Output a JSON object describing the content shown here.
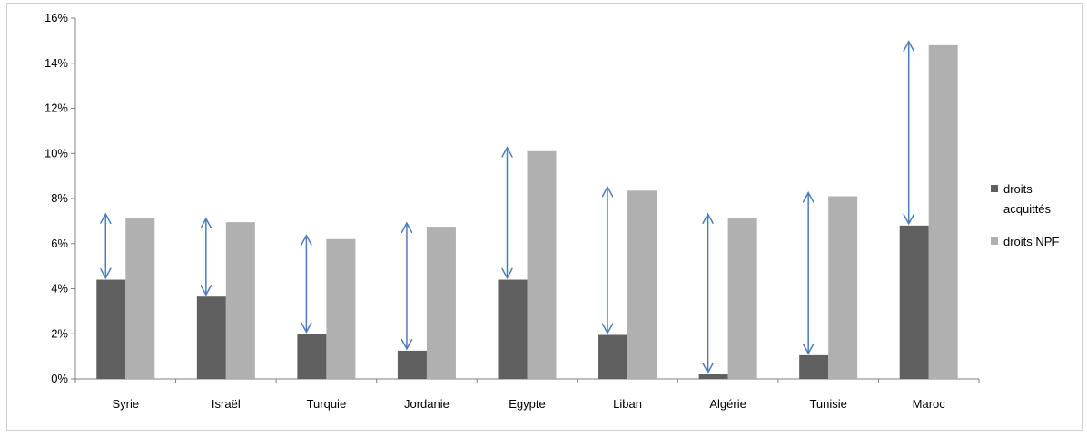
{
  "chart_data": {
    "type": "bar",
    "categories": [
      "Syrie",
      "Israël",
      "Turquie",
      "Jordanie",
      "Egypte",
      "Liban",
      "Algérie",
      "Tunisie",
      "Maroc"
    ],
    "series": [
      {
        "name": "droits acquittés",
        "values": [
          4.4,
          3.65,
          2.0,
          1.25,
          4.4,
          1.95,
          0.2,
          1.05,
          6.8
        ]
      },
      {
        "name": "droits NPF",
        "values": [
          7.15,
          6.95,
          6.2,
          6.75,
          10.1,
          8.35,
          7.15,
          8.1,
          14.8
        ]
      }
    ],
    "ylim": [
      0,
      16
    ],
    "yticks": [
      0,
      2,
      4,
      6,
      8,
      10,
      12,
      14,
      16
    ],
    "ytick_labels": [
      "0%",
      "2%",
      "4%",
      "6%",
      "8%",
      "10%",
      "12%",
      "14%",
      "16%"
    ],
    "title": "",
    "xlabel": "",
    "ylabel": "",
    "grid": false,
    "legend_position": "right",
    "legend": {
      "items": [
        {
          "label_lines": [
            "droits",
            "acquittés"
          ],
          "color": "#5f5f5f"
        },
        {
          "label_lines": [
            "droits NPF"
          ],
          "color": "#b0b0b0"
        }
      ]
    },
    "annotations": "double-headed arrows between the two bars of each country",
    "colors": {
      "paid": "#5f5f5f",
      "mfn": "#b0b0b0",
      "arrow": "#4a7ebb",
      "axis": "#808080"
    }
  }
}
